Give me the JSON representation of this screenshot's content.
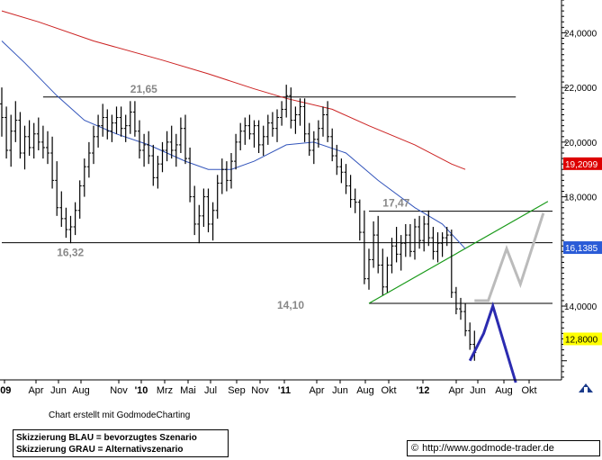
{
  "chart_data": {
    "type": "line",
    "title": "",
    "x_tick_labels": [
      "'09",
      "Apr",
      "Jun",
      "Aug",
      "Nov",
      "'10",
      "Mrz",
      "Mai",
      "Jul",
      "Sep",
      "Nov",
      "'11",
      "Apr",
      "Jun",
      "Aug",
      "Okt",
      "'12",
      "Apr",
      "Jun",
      "Aug",
      "Okt"
    ],
    "y_tick_labels": [
      "24,0000",
      "22,0000",
      "20,0000",
      "18,0000",
      "14,0000"
    ],
    "ylim": [
      11.3,
      25.2
    ],
    "x_range": [
      0,
      120
    ],
    "grid": false,
    "price_bars": [
      [
        0,
        21.4,
        22.0,
        20.2,
        20.9
      ],
      [
        1,
        20.9,
        21.3,
        19.4,
        19.7
      ],
      [
        2,
        19.7,
        21.0,
        19.1,
        20.4
      ],
      [
        3,
        20.4,
        21.5,
        20.0,
        20.8
      ],
      [
        4,
        20.8,
        21.1,
        19.4,
        19.6
      ],
      [
        5,
        19.6,
        20.6,
        19.0,
        20.2
      ],
      [
        6,
        20.2,
        20.8,
        19.5,
        19.8
      ],
      [
        7,
        19.8,
        20.7,
        19.4,
        20.3
      ],
      [
        8,
        20.3,
        20.9,
        19.7,
        20.0
      ],
      [
        9,
        20.0,
        20.6,
        19.4,
        19.8
      ],
      [
        10,
        19.8,
        20.4,
        19.2,
        19.6
      ],
      [
        11,
        19.6,
        20.2,
        18.3,
        18.6
      ],
      [
        12,
        18.6,
        19.3,
        17.3,
        17.6
      ],
      [
        13,
        17.6,
        18.2,
        16.9,
        17.2
      ],
      [
        14,
        17.2,
        17.6,
        16.5,
        16.8
      ],
      [
        15,
        16.8,
        17.3,
        16.3,
        16.9
      ],
      [
        16,
        16.9,
        17.8,
        16.6,
        17.5
      ],
      [
        17,
        17.5,
        18.6,
        17.2,
        18.4
      ],
      [
        18,
        18.4,
        19.4,
        18.0,
        19.1
      ],
      [
        19,
        19.1,
        20.0,
        18.7,
        19.6
      ],
      [
        20,
        19.6,
        20.6,
        19.2,
        20.2
      ],
      [
        21,
        20.2,
        21.0,
        19.8,
        20.6
      ],
      [
        22,
        20.6,
        21.4,
        20.2,
        20.9
      ],
      [
        23,
        20.9,
        21.2,
        20.1,
        20.4
      ],
      [
        24,
        20.4,
        21.0,
        20.0,
        20.7
      ],
      [
        25,
        20.7,
        21.3,
        20.3,
        20.9
      ],
      [
        26,
        20.9,
        21.3,
        20.2,
        20.5
      ],
      [
        27,
        20.5,
        21.0,
        20.0,
        20.6
      ],
      [
        28,
        20.6,
        21.5,
        20.3,
        21.1
      ],
      [
        29,
        21.1,
        21.5,
        20.2,
        20.4
      ],
      [
        30,
        20.4,
        20.8,
        19.4,
        19.7
      ],
      [
        31,
        19.7,
        20.3,
        19.1,
        19.9
      ],
      [
        32,
        19.9,
        20.4,
        19.2,
        19.5
      ],
      [
        33,
        19.5,
        19.9,
        18.4,
        18.7
      ],
      [
        34,
        18.7,
        19.5,
        18.3,
        19.2
      ],
      [
        35,
        19.2,
        20.0,
        18.9,
        19.7
      ],
      [
        36,
        19.7,
        20.4,
        19.3,
        20.0
      ],
      [
        37,
        20.0,
        20.6,
        19.4,
        19.7
      ],
      [
        38,
        19.7,
        20.3,
        19.1,
        19.9
      ],
      [
        39,
        19.9,
        20.9,
        19.6,
        20.5
      ],
      [
        40,
        20.5,
        21.0,
        19.2,
        19.4
      ],
      [
        41,
        19.4,
        19.8,
        17.8,
        18.0
      ],
      [
        42,
        18.0,
        18.4,
        16.6,
        17.0
      ],
      [
        43,
        17.0,
        17.7,
        16.3,
        17.3
      ],
      [
        44,
        17.3,
        18.3,
        16.9,
        18.0
      ],
      [
        45,
        18.0,
        18.3,
        16.7,
        17.0
      ],
      [
        46,
        17.0,
        17.8,
        16.4,
        17.5
      ],
      [
        47,
        17.5,
        18.8,
        17.2,
        18.5
      ],
      [
        48,
        18.5,
        19.4,
        18.1,
        19.0
      ],
      [
        49,
        19.0,
        19.3,
        18.2,
        18.6
      ],
      [
        50,
        18.6,
        19.6,
        18.3,
        19.3
      ],
      [
        51,
        19.3,
        20.3,
        19.0,
        20.0
      ],
      [
        52,
        20.0,
        20.7,
        19.7,
        20.4
      ],
      [
        53,
        20.4,
        20.9,
        19.9,
        20.6
      ],
      [
        54,
        20.6,
        21.0,
        20.1,
        20.3
      ],
      [
        55,
        20.3,
        20.8,
        19.8,
        20.6
      ],
      [
        56,
        20.6,
        20.8,
        19.6,
        19.9
      ],
      [
        57,
        19.9,
        20.6,
        19.5,
        20.2
      ],
      [
        58,
        20.2,
        21.0,
        19.9,
        20.7
      ],
      [
        59,
        20.7,
        21.1,
        20.2,
        20.5
      ],
      [
        60,
        20.5,
        21.2,
        20.0,
        20.9
      ],
      [
        61,
        20.9,
        21.5,
        20.6,
        21.2
      ],
      [
        62,
        21.2,
        22.1,
        20.9,
        21.7
      ],
      [
        63,
        21.7,
        22.0,
        20.5,
        20.8
      ],
      [
        64,
        20.8,
        21.3,
        20.3,
        21.0
      ],
      [
        65,
        21.0,
        21.6,
        20.6,
        21.3
      ],
      [
        66,
        21.3,
        21.6,
        20.0,
        20.3
      ],
      [
        67,
        20.3,
        20.7,
        19.5,
        19.7
      ],
      [
        68,
        19.7,
        20.4,
        19.2,
        20.1
      ],
      [
        69,
        20.1,
        20.8,
        19.8,
        20.5
      ],
      [
        70,
        20.5,
        21.3,
        20.2,
        21.0
      ],
      [
        71,
        21.0,
        21.5,
        20.0,
        20.2
      ],
      [
        72,
        20.2,
        20.5,
        19.3,
        19.5
      ],
      [
        73,
        19.5,
        19.9,
        18.8,
        19.1
      ],
      [
        74,
        19.1,
        19.4,
        18.5,
        18.9
      ],
      [
        75,
        18.9,
        19.2,
        18.1,
        18.4
      ],
      [
        76,
        18.4,
        18.8,
        17.6,
        17.9
      ],
      [
        77,
        17.9,
        18.3,
        17.4,
        17.8
      ],
      [
        78,
        17.8,
        17.9,
        16.4,
        16.7
      ],
      [
        79,
        16.7,
        17.5,
        14.8,
        15.0
      ],
      [
        80,
        15.0,
        16.1,
        14.6,
        15.7
      ],
      [
        81,
        15.7,
        17.1,
        15.4,
        16.6
      ],
      [
        82,
        16.6,
        17.3,
        15.2,
        15.5
      ],
      [
        83,
        15.5,
        16.1,
        14.4,
        14.7
      ],
      [
        84,
        14.7,
        15.8,
        14.5,
        15.5
      ],
      [
        85,
        15.5,
        16.5,
        15.2,
        16.2
      ],
      [
        86,
        16.2,
        16.9,
        15.6,
        15.9
      ],
      [
        87,
        15.9,
        16.6,
        15.3,
        16.3
      ],
      [
        88,
        16.3,
        17.0,
        15.8,
        16.6
      ],
      [
        89,
        16.6,
        17.0,
        15.8,
        16.0
      ],
      [
        90,
        16.0,
        17.2,
        15.7,
        16.9
      ],
      [
        91,
        16.9,
        17.3,
        16.1,
        16.4
      ],
      [
        92,
        16.4,
        17.3,
        16.0,
        17.0
      ],
      [
        93,
        17.0,
        17.5,
        16.2,
        16.5
      ],
      [
        94,
        16.5,
        16.9,
        15.7,
        16.0
      ],
      [
        95,
        16.0,
        16.7,
        15.6,
        16.3
      ],
      [
        96,
        16.3,
        16.7,
        15.8,
        16.5
      ],
      [
        97,
        16.5,
        16.9,
        16.2,
        16.6
      ],
      [
        98,
        16.6,
        16.8,
        14.3,
        14.5
      ],
      [
        99,
        14.5,
        14.7,
        13.7,
        13.9
      ],
      [
        100,
        13.9,
        14.3,
        13.5,
        13.8
      ],
      [
        101,
        13.8,
        14.1,
        12.9,
        13.1
      ],
      [
        102,
        13.1,
        13.4,
        12.4,
        12.6
      ],
      [
        103,
        12.6,
        13.1,
        12.0,
        12.3
      ]
    ],
    "annotations": [
      {
        "text": "21,65",
        "value": 21.65
      },
      {
        "text": "16,32",
        "value": 16.32
      },
      {
        "text": "17,47",
        "value": 17.47
      },
      {
        "text": "14,10",
        "value": 14.1
      }
    ],
    "price_tags": [
      {
        "text": "19,2099",
        "value": 19.21,
        "bg": "#dd0000",
        "fg": "#ffffff"
      },
      {
        "text": "16,1385",
        "value": 16.14,
        "bg": "#2a5bd7",
        "fg": "#ffffff"
      },
      {
        "text": "12,8000",
        "value": 12.8,
        "bg": "#ffff00",
        "fg": "#000000"
      }
    ],
    "lines": {
      "resistance_high": {
        "value": 21.65,
        "x_from": 9,
        "x_to": 112,
        "color": "#000000"
      },
      "support_mid": {
        "value": 16.32,
        "x_from": 0,
        "x_to": 120,
        "color": "#000000"
      },
      "range_top": {
        "value": 17.47,
        "x_from": 80,
        "x_to": 120,
        "color": "#000000"
      },
      "range_bottom": {
        "value": 14.1,
        "x_from": 80,
        "x_to": 120,
        "color": "#000000"
      },
      "uptrend": {
        "points": [
          [
            80,
            14.1
          ],
          [
            119,
            17.83
          ]
        ],
        "color": "#1a9a1a"
      }
    },
    "moving_averages": [
      {
        "color": "#cc2222",
        "points": [
          [
            0,
            24.8
          ],
          [
            8,
            24.4
          ],
          [
            20,
            23.7
          ],
          [
            35,
            23.0
          ],
          [
            45,
            22.5
          ],
          [
            55,
            21.95
          ],
          [
            62,
            21.6
          ],
          [
            72,
            21.2
          ],
          [
            80,
            20.6
          ],
          [
            90,
            19.9
          ],
          [
            98,
            19.2
          ],
          [
            101,
            19.0
          ]
        ]
      },
      {
        "color": "#3355bb",
        "points": [
          [
            0,
            23.7
          ],
          [
            5,
            22.9
          ],
          [
            12,
            21.7
          ],
          [
            18,
            20.8
          ],
          [
            25,
            20.3
          ],
          [
            32,
            19.9
          ],
          [
            40,
            19.3
          ],
          [
            45,
            19.0
          ],
          [
            50,
            19.0
          ],
          [
            55,
            19.3
          ],
          [
            62,
            19.9
          ],
          [
            68,
            20.0
          ],
          [
            75,
            19.6
          ],
          [
            82,
            18.6
          ],
          [
            90,
            17.6
          ],
          [
            96,
            17.0
          ],
          [
            101,
            16.1
          ]
        ]
      }
    ],
    "scenario_blue": {
      "color": "#2b2bb0",
      "points": [
        [
          102,
          12.0
        ],
        [
          105,
          13.0
        ],
        [
          107,
          14.0
        ],
        [
          112,
          11.2
        ]
      ]
    },
    "scenario_gray": {
      "color": "#bbbbbb",
      "points": [
        [
          103,
          14.2
        ],
        [
          106,
          14.2
        ],
        [
          110,
          16.1
        ],
        [
          113,
          14.8
        ],
        [
          118,
          17.4
        ]
      ]
    }
  },
  "footer": {
    "credit": "Chart erstellt mit GodmodeCharting",
    "legend_blue": "Skizzierung BLAU = bevorzugtes Szenario",
    "legend_gray": "Skizzierung GRAU = Alternativszenario",
    "copyright_symbol": "©",
    "url": "http://www.godmode-trader.de"
  }
}
